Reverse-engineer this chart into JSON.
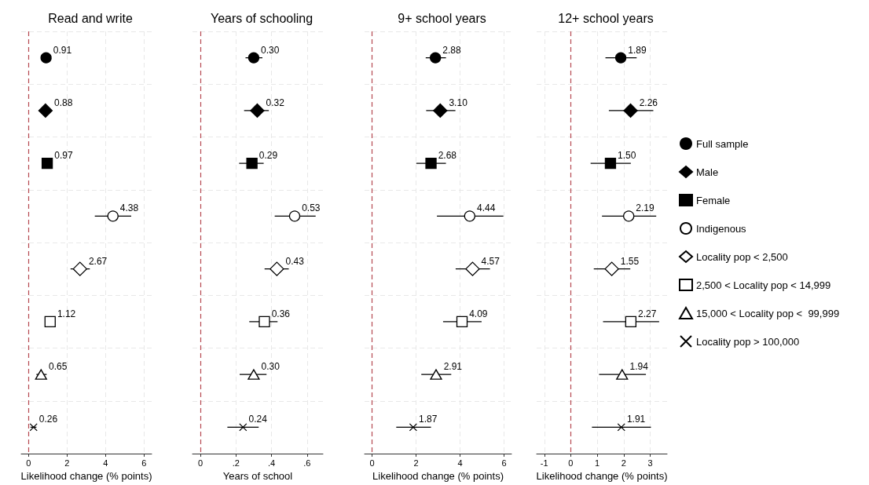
{
  "chart_data": [
    {
      "type": "scatter",
      "orientation": "horizontal",
      "title": "Read and write",
      "xlabel": "Likelihood change (% points)",
      "categories": [
        null,
        null,
        null,
        null,
        null,
        null,
        null,
        null
      ],
      "xlim": [
        -0.38,
        6.39
      ],
      "xticks": [
        0,
        2,
        4,
        6
      ],
      "grid": true,
      "tick_labels": "x",
      "legend": false,
      "ref_lines": [
        {
          "axis": "x",
          "value": 0,
          "color": "#b5474f",
          "line_style": "dashed"
        }
      ],
      "series": [
        {
          "marker": "circle",
          "color": "#000000",
          "values": [
            0.91,
            null,
            null,
            null,
            null,
            null,
            null,
            null
          ],
          "value_labels": [
            "0.91",
            null,
            null,
            null,
            null,
            null,
            null,
            null
          ]
        },
        {
          "marker": "diamond",
          "color": "#000000",
          "values": [
            null,
            0.88,
            null,
            null,
            null,
            null,
            null,
            null
          ],
          "value_labels": [
            null,
            "0.88",
            null,
            null,
            null,
            null,
            null,
            null
          ]
        },
        {
          "marker": "square",
          "color": "#000000",
          "values": [
            null,
            null,
            0.97,
            null,
            null,
            null,
            null,
            null
          ],
          "value_labels": [
            null,
            null,
            "0.97",
            null,
            null,
            null,
            null,
            null
          ]
        },
        {
          "marker": "circle",
          "color": "#ffffff",
          "values": [
            null,
            null,
            null,
            4.38,
            null,
            null,
            null,
            null
          ],
          "errors": [
            null,
            null,
            null,
            [
              3.44,
              5.33
            ],
            null,
            null,
            null,
            null
          ],
          "value_labels": [
            null,
            null,
            null,
            "4.38",
            null,
            null,
            null,
            null
          ]
        },
        {
          "marker": "diamond",
          "color": "#ffffff",
          "values": [
            null,
            null,
            null,
            null,
            2.67,
            null,
            null,
            null
          ],
          "errors": [
            null,
            null,
            null,
            null,
            [
              2.18,
              3.18
            ],
            null,
            null,
            null
          ],
          "value_labels": [
            null,
            null,
            null,
            null,
            "2.67",
            null,
            null,
            null
          ]
        },
        {
          "marker": "square",
          "color": "#ffffff",
          "values": [
            null,
            null,
            null,
            null,
            null,
            1.12,
            null,
            null
          ],
          "errors": [
            null,
            null,
            null,
            null,
            null,
            [
              0.86,
              1.39
            ],
            null,
            null
          ],
          "value_labels": [
            null,
            null,
            null,
            null,
            null,
            "1.12",
            null,
            null
          ]
        },
        {
          "marker": "triangle",
          "color": "#ffffff",
          "values": [
            null,
            null,
            null,
            null,
            null,
            null,
            0.65,
            null
          ],
          "errors": [
            null,
            null,
            null,
            null,
            null,
            null,
            [
              0.41,
              0.94
            ],
            null
          ],
          "value_labels": [
            null,
            null,
            null,
            null,
            null,
            null,
            "0.65",
            null
          ]
        },
        {
          "marker": "cross",
          "color": "#000000",
          "values": [
            null,
            null,
            null,
            null,
            null,
            null,
            null,
            0.26
          ],
          "errors": [
            null,
            null,
            null,
            null,
            null,
            null,
            null,
            [
              0.1,
              0.41
            ]
          ],
          "value_labels": [
            null,
            null,
            null,
            null,
            null,
            null,
            null,
            "0.26"
          ]
        }
      ]
    },
    {
      "type": "scatter",
      "orientation": "horizontal",
      "title": "Years of schooling",
      "xlabel": "Years of school",
      "categories": [
        null,
        null,
        null,
        null,
        null,
        null,
        null,
        null
      ],
      "xlim": [
        -0.044,
        0.689
      ],
      "xticks": [
        0,
        {
          "value": 0.2,
          "label": ".2"
        },
        {
          "value": 0.4,
          "label": ".4"
        },
        {
          "value": 0.6,
          "label": ".6"
        }
      ],
      "grid": true,
      "tick_labels": "x",
      "legend": false,
      "ref_lines": [
        {
          "axis": "x",
          "value": 0,
          "color": "#b5474f",
          "line_style": "dashed"
        }
      ],
      "series": [
        {
          "marker": "circle",
          "color": "#000000",
          "values": [
            0.3,
            null,
            null,
            null,
            null,
            null,
            null,
            null
          ],
          "errors": [
            [
              0.254,
              0.349
            ],
            null,
            null,
            null,
            null,
            null,
            null,
            null
          ],
          "value_labels": [
            "0.30",
            null,
            null,
            null,
            null,
            null,
            null,
            null
          ]
        },
        {
          "marker": "diamond",
          "color": "#000000",
          "values": [
            null,
            0.32,
            null,
            null,
            null,
            null,
            null,
            null
          ],
          "errors": [
            null,
            [
              0.246,
              0.385
            ],
            null,
            null,
            null,
            null,
            null,
            null
          ],
          "value_labels": [
            null,
            "0.32",
            null,
            null,
            null,
            null,
            null,
            null
          ]
        },
        {
          "marker": "square",
          "color": "#000000",
          "values": [
            null,
            null,
            0.29,
            null,
            null,
            null,
            null,
            null
          ],
          "errors": [
            null,
            null,
            [
              0.218,
              0.356
            ],
            null,
            null,
            null,
            null,
            null
          ],
          "value_labels": [
            null,
            null,
            "0.29",
            null,
            null,
            null,
            null,
            null
          ]
        },
        {
          "marker": "circle",
          "color": "#ffffff",
          "values": [
            null,
            null,
            null,
            0.53,
            null,
            null,
            null,
            null
          ],
          "errors": [
            null,
            null,
            null,
            [
              0.418,
              0.648
            ],
            null,
            null,
            null,
            null
          ],
          "value_labels": [
            null,
            null,
            null,
            "0.53",
            null,
            null,
            null,
            null
          ]
        },
        {
          "marker": "diamond",
          "color": "#ffffff",
          "values": [
            null,
            null,
            null,
            null,
            0.43,
            null,
            null,
            null
          ],
          "errors": [
            null,
            null,
            null,
            null,
            [
              0.361,
              0.497
            ],
            null,
            null,
            null
          ],
          "value_labels": [
            null,
            null,
            null,
            null,
            "0.43",
            null,
            null,
            null
          ]
        },
        {
          "marker": "square",
          "color": "#ffffff",
          "values": [
            null,
            null,
            null,
            null,
            null,
            0.36,
            null,
            null
          ],
          "errors": [
            null,
            null,
            null,
            null,
            null,
            [
              0.275,
              0.434
            ],
            null,
            null
          ],
          "value_labels": [
            null,
            null,
            null,
            null,
            null,
            "0.36",
            null,
            null
          ]
        },
        {
          "marker": "triangle",
          "color": "#ffffff",
          "values": [
            null,
            null,
            null,
            null,
            null,
            null,
            0.3,
            null
          ],
          "errors": [
            null,
            null,
            null,
            null,
            null,
            null,
            [
              0.221,
              0.372
            ],
            null
          ],
          "value_labels": [
            null,
            null,
            null,
            null,
            null,
            null,
            "0.30",
            null
          ]
        },
        {
          "marker": "cross",
          "color": "#000000",
          "values": [
            null,
            null,
            null,
            null,
            null,
            null,
            null,
            0.24
          ],
          "errors": [
            null,
            null,
            null,
            null,
            null,
            null,
            null,
            [
              0.152,
              0.328
            ]
          ],
          "value_labels": [
            null,
            null,
            null,
            null,
            null,
            null,
            null,
            "0.24"
          ]
        }
      ]
    },
    {
      "type": "scatter",
      "orientation": "horizontal",
      "title": "9+ school years",
      "xlabel": "Likelihood change (% points)",
      "categories": [
        null,
        null,
        null,
        null,
        null,
        null,
        null,
        null
      ],
      "xlim": [
        -0.34,
        6.34
      ],
      "xticks": [
        0,
        2,
        4,
        6
      ],
      "grid": true,
      "tick_labels": "x",
      "legend": false,
      "ref_lines": [
        {
          "axis": "x",
          "value": 0,
          "color": "#b5474f",
          "line_style": "dashed"
        }
      ],
      "series": [
        {
          "marker": "circle",
          "color": "#000000",
          "values": [
            2.88,
            null,
            null,
            null,
            null,
            null,
            null,
            null
          ],
          "errors": [
            [
              2.44,
              3.36
            ],
            null,
            null,
            null,
            null,
            null,
            null,
            null
          ],
          "value_labels": [
            "2.88",
            null,
            null,
            null,
            null,
            null,
            null,
            null
          ]
        },
        {
          "marker": "diamond",
          "color": "#000000",
          "values": [
            null,
            3.1,
            null,
            null,
            null,
            null,
            null,
            null
          ],
          "errors": [
            null,
            [
              2.46,
              3.79
            ],
            null,
            null,
            null,
            null,
            null,
            null
          ],
          "value_labels": [
            null,
            "3.10",
            null,
            null,
            null,
            null,
            null,
            null
          ]
        },
        {
          "marker": "square",
          "color": "#000000",
          "values": [
            null,
            null,
            2.68,
            null,
            null,
            null,
            null,
            null
          ],
          "errors": [
            null,
            null,
            [
              2.01,
              3.36
            ],
            null,
            null,
            null,
            null,
            null
          ],
          "value_labels": [
            null,
            null,
            "2.68",
            null,
            null,
            null,
            null,
            null
          ]
        },
        {
          "marker": "circle",
          "color": "#ffffff",
          "values": [
            null,
            null,
            null,
            4.44,
            null,
            null,
            null,
            null
          ],
          "errors": [
            null,
            null,
            null,
            [
              2.95,
              5.97
            ],
            null,
            null,
            null,
            null
          ],
          "value_labels": [
            null,
            null,
            null,
            "4.44",
            null,
            null,
            null,
            null
          ]
        },
        {
          "marker": "diamond",
          "color": "#ffffff",
          "values": [
            null,
            null,
            null,
            null,
            4.57,
            null,
            null,
            null
          ],
          "errors": [
            null,
            null,
            null,
            null,
            [
              3.8,
              5.36
            ],
            null,
            null,
            null
          ],
          "value_labels": [
            null,
            null,
            null,
            null,
            "4.57",
            null,
            null,
            null
          ]
        },
        {
          "marker": "square",
          "color": "#ffffff",
          "values": [
            null,
            null,
            null,
            null,
            null,
            4.09,
            null,
            null
          ],
          "errors": [
            null,
            null,
            null,
            null,
            null,
            [
              3.23,
              4.98
            ],
            null,
            null
          ],
          "value_labels": [
            null,
            null,
            null,
            null,
            null,
            "4.09",
            null,
            null
          ]
        },
        {
          "marker": "triangle",
          "color": "#ffffff",
          "values": [
            null,
            null,
            null,
            null,
            null,
            null,
            2.91,
            null
          ],
          "errors": [
            null,
            null,
            null,
            null,
            null,
            null,
            [
              2.24,
              3.6
            ],
            null
          ],
          "value_labels": [
            null,
            null,
            null,
            null,
            null,
            null,
            "2.91",
            null
          ]
        },
        {
          "marker": "cross",
          "color": "#000000",
          "values": [
            null,
            null,
            null,
            null,
            null,
            null,
            null,
            1.87
          ],
          "errors": [
            null,
            null,
            null,
            null,
            null,
            null,
            null,
            [
              1.1,
              2.68
            ]
          ],
          "value_labels": [
            null,
            null,
            null,
            null,
            null,
            null,
            null,
            "1.87"
          ]
        }
      ]
    },
    {
      "type": "scatter",
      "orientation": "horizontal",
      "title": "12+ school years",
      "xlabel": "Likelihood change (% points)",
      "categories": [
        null,
        null,
        null,
        null,
        null,
        null,
        null,
        null
      ],
      "xlim": [
        -1.29,
        3.64
      ],
      "xticks": [
        -1,
        0,
        1,
        2,
        3
      ],
      "grid": true,
      "tick_labels": "x",
      "legend": "right",
      "ref_lines": [
        {
          "axis": "x",
          "value": 0,
          "color": "#b5474f",
          "line_style": "dashed"
        }
      ],
      "series": [
        {
          "name": "Full sample",
          "marker": "circle",
          "color": "#000000",
          "values": [
            1.89,
            null,
            null,
            null,
            null,
            null,
            null,
            null
          ],
          "errors": [
            [
              1.31,
              2.49
            ],
            null,
            null,
            null,
            null,
            null,
            null,
            null
          ],
          "value_labels": [
            "1.89",
            null,
            null,
            null,
            null,
            null,
            null,
            null
          ]
        },
        {
          "name": "Male",
          "marker": "diamond",
          "color": "#000000",
          "values": [
            null,
            2.26,
            null,
            null,
            null,
            null,
            null,
            null
          ],
          "errors": [
            null,
            [
              1.44,
              3.12
            ],
            null,
            null,
            null,
            null,
            null,
            null
          ],
          "value_labels": [
            null,
            "2.26",
            null,
            null,
            null,
            null,
            null,
            null
          ]
        },
        {
          "name": "Female",
          "marker": "square",
          "color": "#000000",
          "values": [
            null,
            null,
            1.5,
            null,
            null,
            null,
            null,
            null
          ],
          "errors": [
            null,
            null,
            [
              0.75,
              2.27
            ],
            null,
            null,
            null,
            null,
            null
          ],
          "value_labels": [
            null,
            null,
            "1.50",
            null,
            null,
            null,
            null,
            null
          ]
        },
        {
          "name": "Indigenous",
          "marker": "circle",
          "color": "#ffffff",
          "values": [
            null,
            null,
            null,
            2.19,
            null,
            null,
            null,
            null
          ],
          "errors": [
            null,
            null,
            null,
            [
              1.18,
              3.23
            ],
            null,
            null,
            null,
            null
          ],
          "value_labels": [
            null,
            null,
            null,
            "2.19",
            null,
            null,
            null,
            null
          ]
        },
        {
          "name": "Locality pop < 2,500",
          "marker": "diamond",
          "color": "#ffffff",
          "values": [
            null,
            null,
            null,
            null,
            1.55,
            null,
            null,
            null
          ],
          "errors": [
            null,
            null,
            null,
            null,
            [
              0.87,
              2.25
            ],
            null,
            null,
            null
          ],
          "value_labels": [
            null,
            null,
            null,
            null,
            "1.55",
            null,
            null,
            null
          ]
        },
        {
          "name": "2,500 < Locality pop < 14,999",
          "marker": "square",
          "color": "#ffffff",
          "values": [
            null,
            null,
            null,
            null,
            null,
            2.27,
            null,
            null
          ],
          "errors": [
            null,
            null,
            null,
            null,
            null,
            [
              1.22,
              3.34
            ],
            null,
            null
          ],
          "value_labels": [
            null,
            null,
            null,
            null,
            null,
            "2.27",
            null,
            null
          ]
        },
        {
          "name": "15,000 < Locality pop <  99,999",
          "marker": "triangle",
          "color": "#ffffff",
          "values": [
            null,
            null,
            null,
            null,
            null,
            null,
            1.94,
            null
          ],
          "errors": [
            null,
            null,
            null,
            null,
            null,
            null,
            [
              1.07,
              2.84
            ],
            null
          ],
          "value_labels": [
            null,
            null,
            null,
            null,
            null,
            null,
            "1.94",
            null
          ]
        },
        {
          "name": "Locality pop > 100,000",
          "marker": "cross",
          "color": "#000000",
          "values": [
            null,
            null,
            null,
            null,
            null,
            null,
            null,
            1.91
          ],
          "errors": [
            null,
            null,
            null,
            null,
            null,
            null,
            null,
            [
              0.8,
              3.03
            ]
          ],
          "value_labels": [
            null,
            null,
            null,
            null,
            null,
            null,
            null,
            "1.91"
          ]
        }
      ]
    }
  ]
}
